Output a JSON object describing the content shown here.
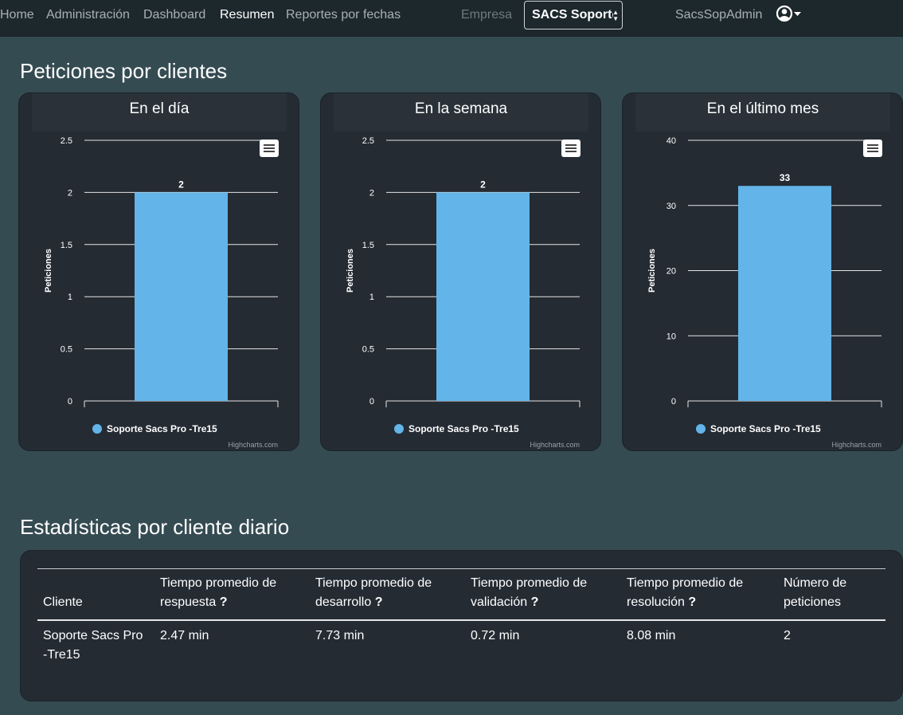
{
  "nav": {
    "links": [
      "Home",
      "Administración",
      "Dashboard",
      "Resumen",
      "Reportes por fechas"
    ],
    "active": "Resumen",
    "empresa_label": "Empresa",
    "empresa_selected": "SACS Soporte",
    "user": "SacsSopAdmin",
    "user_icon": "user-circle-icon"
  },
  "section1": {
    "title": "Peticiones por clientes"
  },
  "charts_meta": {
    "menu_icon": "hamburger-menu-icon",
    "credits": "Highcharts.com",
    "bar_color": "#63b4e8",
    "background": "#242b33"
  },
  "chart_data": [
    {
      "type": "bar",
      "title": "En el día",
      "ylabel": "Peticiones",
      "xlabel": "",
      "ylim": [
        0,
        2.5
      ],
      "yticks": [
        "0",
        "0.5",
        "1",
        "1.5",
        "2",
        "2.5"
      ],
      "series": [
        {
          "name": "Soporte Sacs Pro -Tre15",
          "values": [
            2
          ]
        }
      ],
      "data_labels": [
        "2"
      ],
      "legend": "bottom-center",
      "grid": true
    },
    {
      "type": "bar",
      "title": "En la semana",
      "ylabel": "Peticiones",
      "xlabel": "",
      "ylim": [
        0,
        2.5
      ],
      "yticks": [
        "0",
        "0.5",
        "1",
        "1.5",
        "2",
        "2.5"
      ],
      "series": [
        {
          "name": "Soporte Sacs Pro -Tre15",
          "values": [
            2
          ]
        }
      ],
      "data_labels": [
        "2"
      ],
      "legend": "bottom-center",
      "grid": true
    },
    {
      "type": "bar",
      "title": "En el último mes",
      "ylabel": "Peticiones",
      "xlabel": "",
      "ylim": [
        0,
        40
      ],
      "yticks": [
        "0",
        "10",
        "20",
        "30",
        "40"
      ],
      "series": [
        {
          "name": "Soporte Sacs Pro -Tre15",
          "values": [
            33
          ]
        }
      ],
      "data_labels": [
        "33"
      ],
      "legend": "bottom-center",
      "grid": true
    }
  ],
  "section2": {
    "title": "Estadísticas por cliente diario"
  },
  "table": {
    "headers": [
      {
        "line1": "",
        "line2": "Cliente",
        "help": ""
      },
      {
        "line1": "Tiempo promedio de",
        "line2": "respuesta",
        "help": "?"
      },
      {
        "line1": "Tiempo promedio de",
        "line2": "desarrollo",
        "help": "?"
      },
      {
        "line1": "Tiempo promedio de",
        "line2": "validación",
        "help": "?"
      },
      {
        "line1": "Tiempo promedio de",
        "line2": "resolución",
        "help": "?"
      },
      {
        "line1": "Número de",
        "line2": "peticiones",
        "help": ""
      }
    ],
    "rows": [
      {
        "cliente_line1": "Soporte Sacs Pro",
        "cliente_line2": "-Tre15",
        "respuesta": "2.47 min",
        "desarrollo": "7.73 min",
        "validacion": "0.72 min",
        "resolucion": "8.08 min",
        "peticiones": "2"
      }
    ]
  }
}
